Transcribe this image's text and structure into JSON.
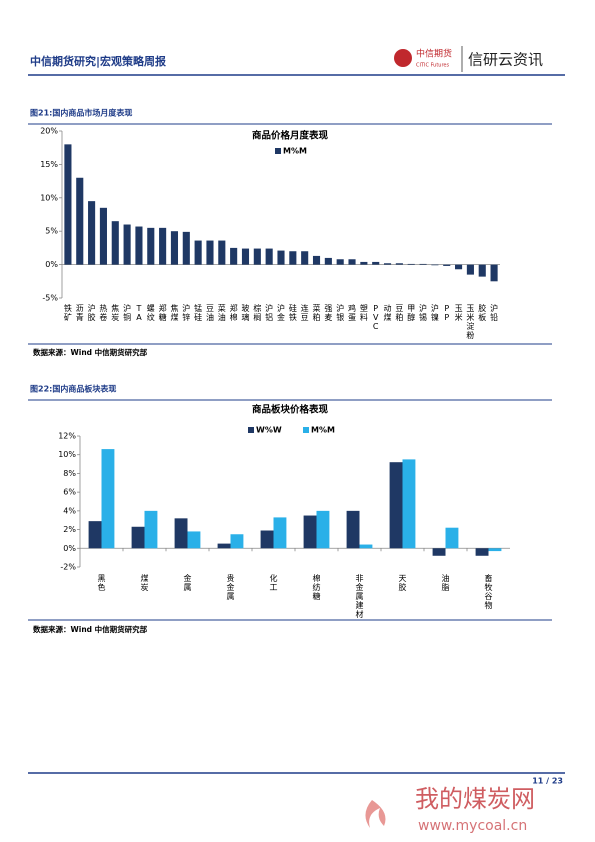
{
  "header": {
    "title": "中信期货研究|宏观策略周报",
    "logo_cn": "中信期货",
    "logo_en": "CITIC Futures",
    "brand": "信研云资讯"
  },
  "figures": [
    {
      "caption": "图21:国内商品市场月度表现",
      "source": "数据来源：Wind  中信期货研究部"
    },
    {
      "caption": "图22:国内商品板块表现",
      "source": "数据来源：Wind  中信期货研究部"
    }
  ],
  "chart_data": [
    {
      "type": "bar",
      "title": "商品价格月度表现",
      "categories": [
        "铁矿",
        "沥青",
        "沪胶",
        "热卷",
        "焦炭",
        "沪铜",
        "TA",
        "螺纹",
        "郑糖",
        "焦煤",
        "沪锌",
        "锰硅",
        "豆油",
        "菜油",
        "郑棉",
        "玻璃",
        "棕榈",
        "沪铝",
        "沪金",
        "硅铁",
        "连豆",
        "菜粕",
        "强麦",
        "沪银",
        "鸡蛋",
        "塑料",
        "PVC",
        "动煤",
        "豆粕",
        "甲醇",
        "沪锡",
        "沪镍",
        "PP",
        "玉米",
        "玉米淀粉",
        "胶板",
        "沪铅"
      ],
      "series": [
        {
          "name": "M%M",
          "color": "#1f3864",
          "values": [
            18,
            13,
            9.5,
            8.5,
            6.5,
            6,
            5.7,
            5.5,
            5.5,
            5,
            4.9,
            3.6,
            3.6,
            3.6,
            2.5,
            2.4,
            2.4,
            2.4,
            2.1,
            2,
            2,
            1.3,
            1,
            0.8,
            0.8,
            0.4,
            0.4,
            0.2,
            0.2,
            0.1,
            0.1,
            -0.1,
            -0.2,
            -0.7,
            -1.5,
            -1.8,
            -2.5
          ]
        }
      ],
      "ylim": [
        -5,
        20
      ],
      "yticks": [
        {
          "value": -5,
          "label": "-5%"
        },
        {
          "value": 0,
          "label": "0%"
        },
        {
          "value": 5,
          "label": "5%"
        },
        {
          "value": 10,
          "label": "10%"
        },
        {
          "value": 15,
          "label": "15%"
        },
        {
          "value": 20,
          "label": "20%"
        }
      ]
    },
    {
      "type": "bar",
      "title": "商品板块价格表现",
      "categories": [
        "黑色",
        "煤炭",
        "金属",
        "贵金属",
        "化工",
        "棉纺糖",
        "非金属建材",
        "天胶",
        "油脂",
        "畜牧谷物"
      ],
      "series": [
        {
          "name": "W%W",
          "color": "#1f3864",
          "values": [
            2.9,
            2.3,
            3.2,
            0.5,
            1.9,
            3.5,
            4.0,
            9.2,
            -0.8,
            -0.8
          ]
        },
        {
          "name": "M%M",
          "color": "#2ab0e8",
          "values": [
            10.6,
            4.0,
            1.8,
            1.5,
            3.3,
            4.0,
            0.4,
            9.5,
            2.2,
            -0.3
          ]
        }
      ],
      "ylim": [
        -2,
        12
      ],
      "yticks": [
        {
          "value": -2,
          "label": "-2%"
        },
        {
          "value": 0,
          "label": "0%"
        },
        {
          "value": 2,
          "label": "2%"
        },
        {
          "value": 4,
          "label": "4%"
        },
        {
          "value": 6,
          "label": "6%"
        },
        {
          "value": 8,
          "label": "8%"
        },
        {
          "value": 10,
          "label": "10%"
        },
        {
          "value": 12,
          "label": "12%"
        }
      ]
    }
  ],
  "footer": {
    "page": "11 / 23"
  },
  "watermark": {
    "name": "我的煤炭网",
    "url": "www.mycoal.cn"
  }
}
